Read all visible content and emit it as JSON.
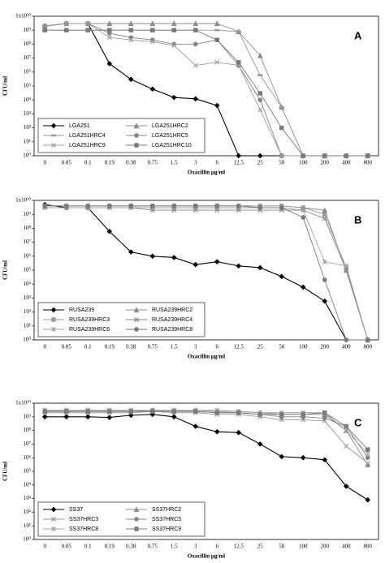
{
  "chart_data": [
    {
      "type": "line",
      "panel_label": "A",
      "xlabel": "Oxacillin µg/ml",
      "ylabel": "CFU/ml",
      "log_y": true,
      "legend": "lower left",
      "categories": [
        "0",
        "0.05",
        "0.1",
        "0.19",
        "0.38",
        "0.75",
        "1.5",
        "3",
        "6",
        "12.5",
        "25",
        "50",
        "100",
        "200",
        "400",
        "800"
      ],
      "ylim": [
        1,
        10000000000.0
      ],
      "yticks": [
        {
          "value": 10000000000.0,
          "label": "1x10¹⁰"
        },
        {
          "value": 1000000000.0,
          "label": "10⁹"
        },
        {
          "value": 100000000.0,
          "label": "10⁸"
        },
        {
          "value": 10000000.0,
          "label": "10⁷"
        },
        {
          "value": 1000000.0,
          "label": "10⁶"
        },
        {
          "value": 100000.0,
          "label": "10⁵"
        },
        {
          "value": 10000.0,
          "label": "10⁴"
        },
        {
          "value": 1000.0,
          "label": "10³"
        },
        {
          "value": 100.0,
          "label": "10²"
        },
        {
          "value": 10.0,
          "label": "10¹"
        },
        {
          "value": 1,
          "label": "10⁰"
        }
      ],
      "series": [
        {
          "name": "LGA251",
          "color": "#000000",
          "marker": "diamond",
          "values": [
            2000000000.0,
            3000000000.0,
            3000000000.0,
            4000000.0,
            300000.0,
            60000.0,
            15000.0,
            12000.0,
            4000.0,
            1,
            1,
            1,
            1,
            1,
            1,
            1
          ]
        },
        {
          "name": "LGA251HRC2",
          "color": "#8c8c8c",
          "marker": "triangle",
          "values": [
            2000000000.0,
            3000000000.0,
            3000000000.0,
            3000000000.0,
            3000000000.0,
            3000000000.0,
            3000000000.0,
            3000000000.0,
            3000000000.0,
            800000000.0,
            15000000.0,
            3000.0,
            1,
            1,
            1,
            1
          ]
        },
        {
          "name": "LGA251HRC4",
          "color": "#9a9a9a",
          "marker": "dash",
          "values": [
            1000000000.0,
            1000000000.0,
            1000000000.0,
            1000000000.0,
            1000000000.0,
            1000000000.0,
            1000000000.0,
            1000000000.0,
            1000000000.0,
            800000000.0,
            600000.0,
            3000.0,
            1,
            1,
            1,
            1
          ]
        },
        {
          "name": "LGA251HRC5",
          "color": "#858585",
          "marker": "circle",
          "values": [
            2000000000.0,
            3000000000.0,
            3000000000.0,
            600000000.0,
            300000000.0,
            200000000.0,
            100000000.0,
            100000000.0,
            200000000.0,
            3000000.0,
            10000.0,
            1,
            1,
            1,
            1,
            1
          ]
        },
        {
          "name": "LGA251HRC9",
          "color": "#a0a0a0",
          "marker": "x",
          "values": [
            2000000000.0,
            3000000000.0,
            3000000000.0,
            300000000.0,
            200000000.0,
            150000000.0,
            80000000.0,
            3000000.0,
            5000000.0,
            3000000.0,
            2000.0,
            1,
            1,
            1,
            1,
            1
          ]
        },
        {
          "name": "LGA251HRC10",
          "color": "#7a7a7a",
          "marker": "square",
          "values": [
            1000000000.0,
            1000000000.0,
            1000000000.0,
            1000000000.0,
            1000000000.0,
            1000000000.0,
            1000000000.0,
            1000000000.0,
            200000000.0,
            5000000.0,
            30000.0,
            100.0,
            1,
            1,
            1,
            1
          ]
        }
      ]
    },
    {
      "type": "line",
      "panel_label": "B",
      "xlabel": "Oxacillin µg/ml",
      "ylabel": "CFU/ml",
      "log_y": true,
      "legend": "lower left",
      "categories": [
        "0",
        "0.05",
        "0.1",
        "0.19",
        "0.38",
        "0.75",
        "1.5",
        "3",
        "6",
        "12.5",
        "25",
        "50",
        "100",
        "200",
        "400",
        "800"
      ],
      "ylim": [
        1,
        10000000000.0
      ],
      "yticks": [
        {
          "value": 10000000000.0,
          "label": "1x10¹⁰"
        },
        {
          "value": 1000000000.0,
          "label": "10⁹"
        },
        {
          "value": 100000000.0,
          "label": "10⁸"
        },
        {
          "value": 10000000.0,
          "label": "10⁷"
        },
        {
          "value": 1000000.0,
          "label": "10⁶"
        },
        {
          "value": 100000.0,
          "label": "10⁵"
        },
        {
          "value": 10000.0,
          "label": "10⁴"
        },
        {
          "value": 1000.0,
          "label": "10³"
        },
        {
          "value": 100.0,
          "label": "10²"
        },
        {
          "value": 10.0,
          "label": "10¹"
        },
        {
          "value": 1,
          "label": "10⁰"
        }
      ],
      "series": [
        {
          "name": "RUSA239",
          "color": "#000000",
          "marker": "diamond",
          "values": [
            5000000000.0,
            3000000000.0,
            3000000000.0,
            60000000.0,
            2000000.0,
            1000000.0,
            800000.0,
            250000.0,
            400000.0,
            200000.0,
            150000.0,
            35000.0,
            6000.0,
            600.0,
            1,
            1
          ]
        },
        {
          "name": "RUSA239HRC2",
          "color": "#8c8c8c",
          "marker": "triangle",
          "values": [
            4000000000.0,
            4000000000.0,
            4000000000.0,
            4000000000.0,
            4000000000.0,
            4000000000.0,
            4000000000.0,
            4000000000.0,
            4000000000.0,
            4000000000.0,
            4000000000.0,
            4000000000.0,
            3000000000.0,
            2000000000.0,
            100000.0,
            1
          ]
        },
        {
          "name": "RUSA239HRC3",
          "color": "#9a9a9a",
          "marker": "square",
          "values": [
            4000000000.0,
            4000000000.0,
            4000000000.0,
            4000000000.0,
            4000000000.0,
            4000000000.0,
            4000000000.0,
            4000000000.0,
            4000000000.0,
            4000000000.0,
            4000000000.0,
            4000000000.0,
            3000000000.0,
            1000000000.0,
            150000.0,
            1
          ]
        },
        {
          "name": "RUSA239HRC4",
          "color": "#858585",
          "marker": "x",
          "values": [
            3000000000.0,
            3000000000.0,
            3000000000.0,
            3000000000.0,
            3000000000.0,
            2000000000.0,
            2000000000.0,
            2000000000.0,
            2000000000.0,
            2000000000.0,
            2000000000.0,
            2000000000.0,
            2000000000.0,
            500000000.0,
            100000.0,
            1
          ]
        },
        {
          "name": "RUSA239HRC6",
          "color": "#a0a0a0",
          "marker": "star",
          "values": [
            3000000000.0,
            3000000000.0,
            3000000000.0,
            3000000000.0,
            3000000000.0,
            3000000000.0,
            3000000000.0,
            3000000000.0,
            3000000000.0,
            3000000000.0,
            3000000000.0,
            3000000000.0,
            2000000000.0,
            400000.0,
            200000.0,
            1
          ]
        },
        {
          "name": "RUSA239HRC8",
          "color": "#7a7a7a",
          "marker": "circle",
          "values": [
            4000000000.0,
            4000000000.0,
            4000000000.0,
            4000000000.0,
            4000000000.0,
            4000000000.0,
            4000000000.0,
            4000000000.0,
            4000000000.0,
            4000000000.0,
            3000000000.0,
            3000000000.0,
            600000000.0,
            20000.0,
            1,
            1
          ]
        }
      ]
    },
    {
      "type": "line",
      "panel_label": "C",
      "xlabel": "Oxacillin µg/ml",
      "ylabel": "CFU/ml",
      "log_y": true,
      "legend": "lower left",
      "categories": [
        "0",
        "0.05",
        "0.1",
        "0.19",
        "0.38",
        "0.75",
        "1.5",
        "3",
        "6",
        "12.5",
        "25",
        "50",
        "100",
        "200",
        "400",
        "800"
      ],
      "ylim": [
        1,
        10000000000.0
      ],
      "yticks": [
        {
          "value": 10000000000.0,
          "label": "1x10¹⁰"
        },
        {
          "value": 1000000000.0,
          "label": "10⁹"
        },
        {
          "value": 100000000.0,
          "label": "10⁸"
        },
        {
          "value": 10000000.0,
          "label": "10⁷"
        },
        {
          "value": 1000000.0,
          "label": "10⁶"
        },
        {
          "value": 100000.0,
          "label": "10⁵"
        },
        {
          "value": 10000.0,
          "label": "10⁴"
        },
        {
          "value": 1000.0,
          "label": "10³"
        },
        {
          "value": 100.0,
          "label": "10²"
        },
        {
          "value": 10.0,
          "label": "10¹"
        },
        {
          "value": 1,
          "label": "10⁰"
        }
      ],
      "series": [
        {
          "name": "SS37",
          "color": "#000000",
          "marker": "diamond",
          "values": [
            1000000000.0,
            1000000000.0,
            1000000000.0,
            900000000.0,
            1300000000.0,
            1500000000.0,
            1000000000.0,
            200000000.0,
            80000000.0,
            70000000.0,
            10000000.0,
            1200000.0,
            1000000.0,
            700000.0,
            8000.0,
            800.0
          ]
        },
        {
          "name": "SS37HRC2",
          "color": "#8c8c8c",
          "marker": "triangle",
          "values": [
            3000000000.0,
            3000000000.0,
            3000000000.0,
            3000000000.0,
            3000000000.0,
            3000000000.0,
            3000000000.0,
            3000000000.0,
            2500000000.0,
            2500000000.0,
            2000000000.0,
            1500000000.0,
            1500000000.0,
            1500000000.0,
            100000000.0,
            300000.0
          ]
        },
        {
          "name": "SS37HRC3",
          "color": "#9a9a9a",
          "marker": "x",
          "values": [
            2000000000.0,
            2000000000.0,
            2000000000.0,
            2000000000.0,
            2000000000.0,
            2500000000.0,
            2000000000.0,
            2000000000.0,
            1500000000.0,
            1500000000.0,
            1000000000.0,
            600000000.0,
            600000000.0,
            500000000.0,
            7000000.0,
            400000.0
          ]
        },
        {
          "name": "SS37HRC5",
          "color": "#858585",
          "marker": "circle",
          "values": [
            2500000000.0,
            2500000000.0,
            2500000000.0,
            2500000000.0,
            2500000000.0,
            3000000000.0,
            2500000000.0,
            2500000000.0,
            2000000000.0,
            2000000000.0,
            1500000000.0,
            1000000000.0,
            1000000000.0,
            800000000.0,
            200000000.0,
            1000000.0
          ]
        },
        {
          "name": "SS37HRC8",
          "color": "#a0a0a0",
          "marker": "star",
          "values": [
            3000000000.0,
            3000000000.0,
            3000000000.0,
            3000000000.0,
            3000000000.0,
            3000000000.0,
            3000000000.0,
            3000000000.0,
            3000000000.0,
            2500000000.0,
            2000000000.0,
            2000000000.0,
            2000000000.0,
            2000000000.0,
            100000000.0,
            2000000.0
          ]
        },
        {
          "name": "SS37HRC9",
          "color": "#7a7a7a",
          "marker": "square",
          "values": [
            2500000000.0,
            2500000000.0,
            2500000000.0,
            2500000000.0,
            2500000000.0,
            2500000000.0,
            2500000000.0,
            2500000000.0,
            2000000000.0,
            2000000000.0,
            1500000000.0,
            1500000000.0,
            1500000000.0,
            2000000000.0,
            200000000.0,
            4000000.0
          ]
        }
      ]
    }
  ]
}
